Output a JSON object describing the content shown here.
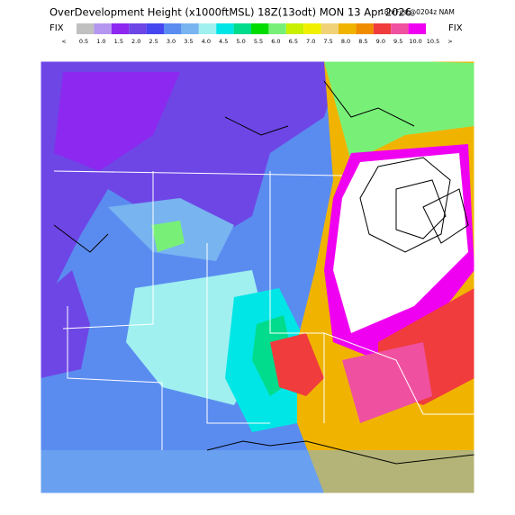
{
  "header": {
    "title": "OverDevelopment Height (x1000ftMSL) 18Z(13odt) MON 13 Apr 2026",
    "forecast": "18hrFcst@0204z NAM"
  },
  "legend": {
    "left_label": "FIX",
    "right_label": "FIX",
    "low_label": "<",
    "high_label": ">",
    "labels": [
      "0.5",
      "1.0",
      "1.5",
      "2.0",
      "2.5",
      "3.0",
      "3.5",
      "4.0",
      "4.5",
      "5.0",
      "5.5",
      "6.0",
      "6.5",
      "7.0",
      "7.5",
      "8.0",
      "8.5",
      "9.0",
      "9.5",
      "10.0",
      "10.5"
    ],
    "colors": [
      "#c0c0c0",
      "#b496f0",
      "#8c28f0",
      "#6e46e6",
      "#4646f0",
      "#5a8cf0",
      "#78b4f0",
      "#a0f0f0",
      "#00e6e6",
      "#00dc8c",
      "#00dc00",
      "#78f078",
      "#c8f000",
      "#f0f000",
      "#f0d278",
      "#f0b400",
      "#f08c00",
      "#f03c3c",
      "#f050a0",
      "#f000f0"
    ]
  }
}
